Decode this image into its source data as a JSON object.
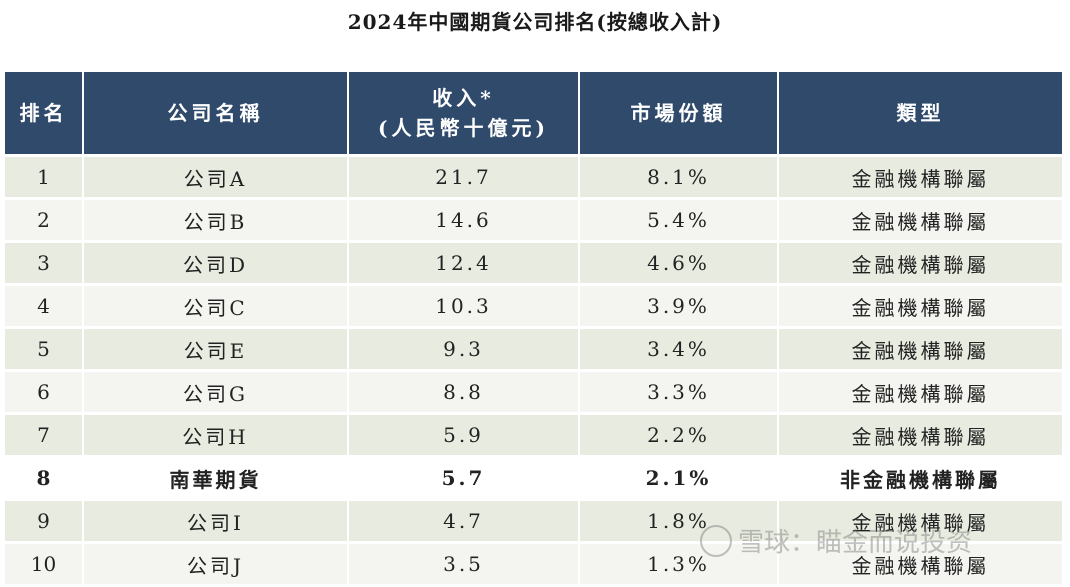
{
  "title": "2024年中國期貨公司排名(按總收入計)",
  "table": {
    "headers": {
      "rank": "排名",
      "company": "公司名稱",
      "revenue_line1": "收入*",
      "revenue_line2": "(人民幣十億元)",
      "share": "市場份額",
      "type": "類型"
    },
    "rows": [
      {
        "rank": "1",
        "company": "公司A",
        "revenue": "21.7",
        "share": "8.1%",
        "type": "金融機構聯屬"
      },
      {
        "rank": "2",
        "company": "公司B",
        "revenue": "14.6",
        "share": "5.4%",
        "type": "金融機構聯屬"
      },
      {
        "rank": "3",
        "company": "公司D",
        "revenue": "12.4",
        "share": "4.6%",
        "type": "金融機構聯屬"
      },
      {
        "rank": "4",
        "company": "公司C",
        "revenue": "10.3",
        "share": "3.9%",
        "type": "金融機構聯屬"
      },
      {
        "rank": "5",
        "company": "公司E",
        "revenue": "9.3",
        "share": "3.4%",
        "type": "金融機構聯屬"
      },
      {
        "rank": "6",
        "company": "公司G",
        "revenue": "8.8",
        "share": "3.3%",
        "type": "金融機構聯屬"
      },
      {
        "rank": "7",
        "company": "公司H",
        "revenue": "5.9",
        "share": "2.2%",
        "type": "金融機構聯屬"
      },
      {
        "rank": "8",
        "company": "南華期貨",
        "revenue": "5.7",
        "share": "2.1%",
        "type": "非金融機構聯屬"
      },
      {
        "rank": "9",
        "company": "公司I",
        "revenue": "4.7",
        "share": "1.8%",
        "type": "金融機構聯屬"
      },
      {
        "rank": "10",
        "company": "公司J",
        "revenue": "3.5",
        "share": "1.3%",
        "type": "金融機構聯屬"
      }
    ]
  },
  "watermark": "雪球：瞄金而说投资"
}
